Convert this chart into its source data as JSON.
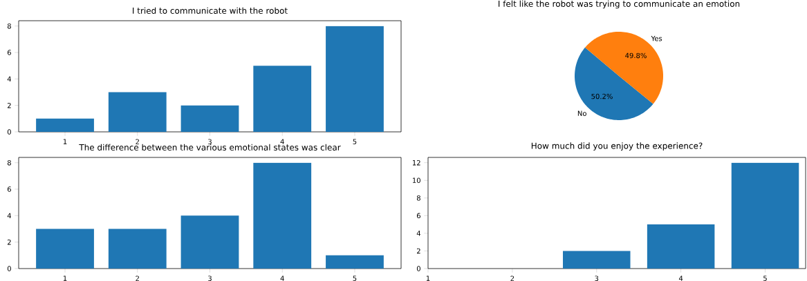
{
  "chart_data": [
    {
      "type": "bar",
      "title": "I tried to communicate with the robot",
      "categories": [
        "1",
        "2",
        "3",
        "4",
        "5"
      ],
      "values": [
        1,
        3,
        2,
        5,
        8
      ],
      "color": "#1f77b4",
      "ylim": [
        0,
        8.4
      ],
      "yticks": [
        0,
        2,
        4,
        6,
        8
      ]
    },
    {
      "type": "pie",
      "title": "I felt like the robot was trying to communicate an emotion",
      "categories": [
        "No",
        "Yes"
      ],
      "values": [
        50.2,
        49.8
      ],
      "colors": [
        "#1f77b4",
        "#ff7f0e"
      ],
      "value_labels": [
        "50.2%",
        "49.8%"
      ]
    },
    {
      "type": "bar",
      "title": "The difference between the various emotional states was clear",
      "categories": [
        "1",
        "2",
        "3",
        "4",
        "5"
      ],
      "values": [
        3,
        3,
        4,
        8,
        1
      ],
      "color": "#1f77b4",
      "ylim": [
        0,
        8.4
      ],
      "yticks": [
        0,
        2,
        4,
        6,
        8
      ]
    },
    {
      "type": "bar",
      "title": "How much did you enjoy the experience?",
      "x": [
        1,
        2,
        3,
        4,
        5
      ],
      "values": [
        0,
        0,
        2,
        5,
        12
      ],
      "color": "#1f77b4",
      "xlim": [
        1,
        5.48
      ],
      "xticks": [
        1,
        2,
        3,
        4,
        5
      ],
      "ylim": [
        0,
        12.6
      ],
      "yticks": [
        0,
        2,
        4,
        6,
        8,
        10,
        12
      ]
    }
  ]
}
